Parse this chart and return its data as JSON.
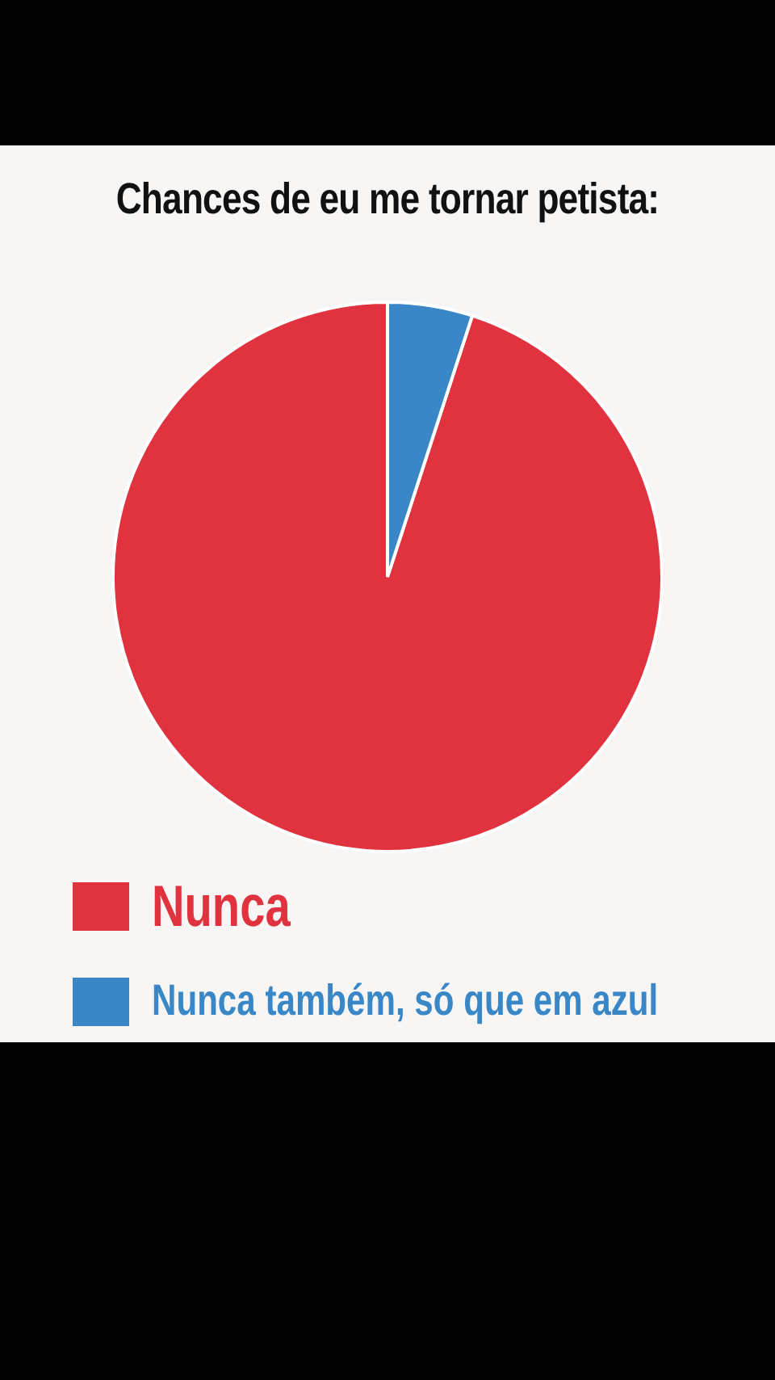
{
  "chart_data": {
    "type": "pie",
    "title": "Chances de eu me tornar petista:",
    "categories": [
      "Nunca",
      "Nunca também, só que em azul"
    ],
    "values": [
      95,
      5
    ],
    "colors": [
      "#e0333f",
      "#3a87c8"
    ],
    "legend": "bottom"
  }
}
